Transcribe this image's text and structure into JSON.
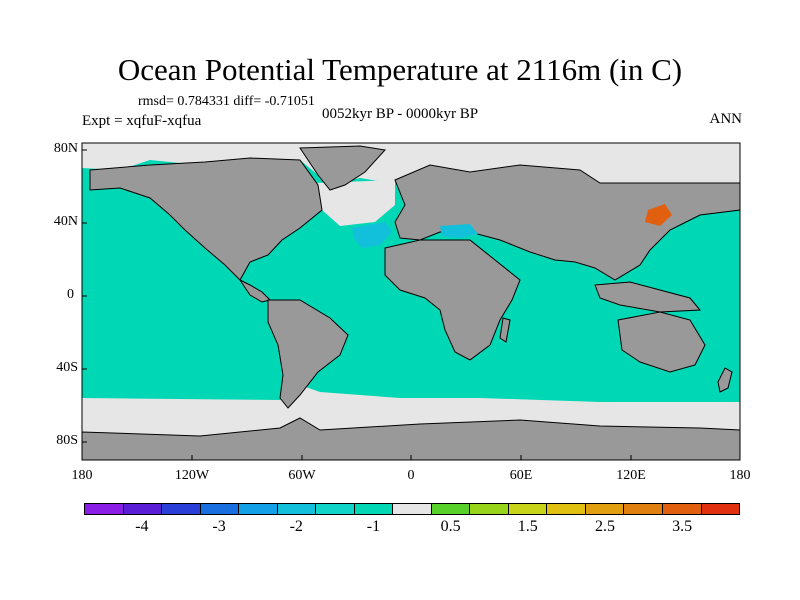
{
  "title": "Ocean Potential Temperature at 2116m (in C)",
  "rmsd_text": "rmsd= 0.784331 diff= -0.71051",
  "period_text": "0052kyr BP - 0000kyr BP",
  "expt_text": "Expt = xqfuF-xqfua",
  "season_text": "ANN",
  "lat_labels": [
    "80N",
    "40N",
    "0",
    "40S",
    "80S"
  ],
  "lon_labels": [
    "180",
    "120W",
    "60W",
    "0",
    "60E",
    "120E",
    "180"
  ],
  "colorbar": {
    "colors": [
      "#8a1ee6",
      "#5a1ed6",
      "#2a3fd8",
      "#1a6fe0",
      "#13a0e6",
      "#12c0dc",
      "#10d4c8",
      "#00d7b4",
      "#e6e6e6",
      "#58d22a",
      "#98d41a",
      "#c8d41a",
      "#e0c010",
      "#e0a010",
      "#e08010",
      "#e06010",
      "#e03010"
    ],
    "labels": [
      "-4",
      "-3",
      "-2",
      "-1",
      "0.5",
      "1.5",
      "2.5",
      "3.5"
    ]
  },
  "colors": {
    "ocean": "#00d7b4",
    "land": "#999999",
    "missing": "#e6e6e6",
    "cold_anomaly": "#12c0dc",
    "warm_anomaly": "#e06010"
  }
}
